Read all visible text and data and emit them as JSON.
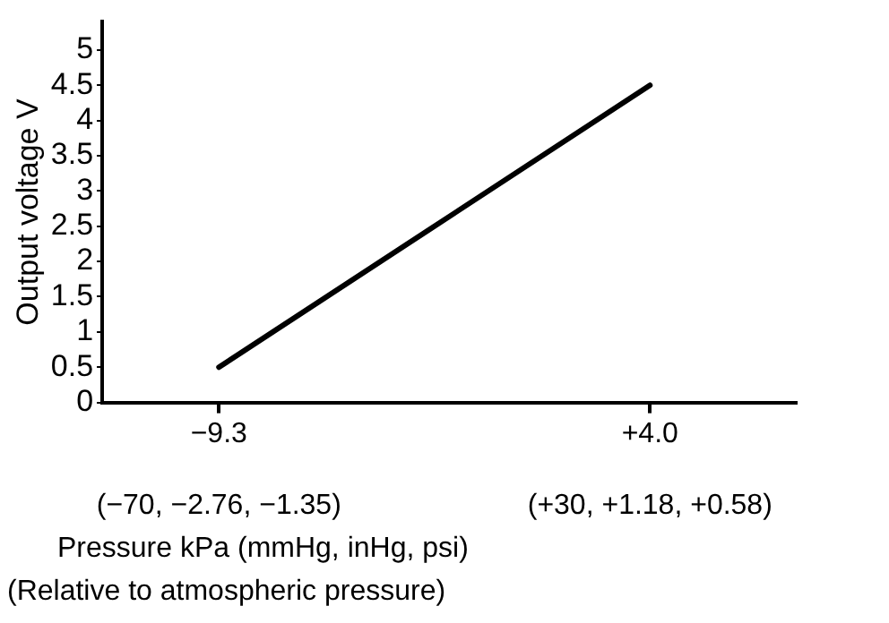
{
  "chart_data": {
    "type": "line",
    "xlabel": "Pressure kPa (mmHg, inHg, psi)",
    "ylabel": "Output voltage V",
    "annotations": [
      "(−70, −2.76, −1.35)",
      "(+30, +1.18, +0.58)",
      "(Relative to atmospheric pressure)"
    ],
    "x": [
      -9.3,
      4.0
    ],
    "series": [
      {
        "color": "#000000",
        "values": [
          0.5,
          4.5
        ]
      }
    ],
    "xlim": [
      -12.9,
      8.5
    ],
    "xticks": [
      {
        "value": -9.3,
        "label": "−9.3"
      },
      {
        "value": 4.0,
        "label": "+4.0"
      }
    ],
    "ylim": [
      0,
      5.4
    ],
    "yticks": [
      0,
      0.5,
      1,
      1.5,
      2,
      2.5,
      3,
      3.5,
      4,
      4.5,
      5
    ],
    "grid": false,
    "legend": false,
    "marker": "none",
    "line_style": "solid"
  }
}
